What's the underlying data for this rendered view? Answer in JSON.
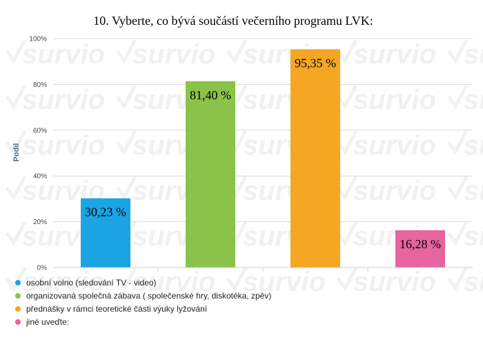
{
  "chart_data": {
    "type": "bar",
    "title": "10. Vyberte, co bývá součástí večerního programu LVK:",
    "ylabel": "Podíl",
    "xlabel": "",
    "ylim": [
      0,
      100
    ],
    "yticks": [
      "0%",
      "20%",
      "40%",
      "60%",
      "80%",
      "100%"
    ],
    "grid": true,
    "legend_position": "bottom-left",
    "categories": [
      "osobní volno (sledování TV - video)",
      "organizovaná společná zábava ( společenské hry, diskotéka, zpěv)",
      "přednášky v rámci teoretické části výuky lyžování",
      "jiné uveďte:"
    ],
    "values": [
      30.23,
      81.4,
      95.35,
      16.28
    ],
    "value_labels": [
      "30,23 %",
      "81,40 %",
      "95,35 %",
      "16,28 %"
    ],
    "colors": [
      "#1aa4e3",
      "#8bc34a",
      "#f5a623",
      "#e8649f"
    ],
    "watermark": "survio"
  }
}
